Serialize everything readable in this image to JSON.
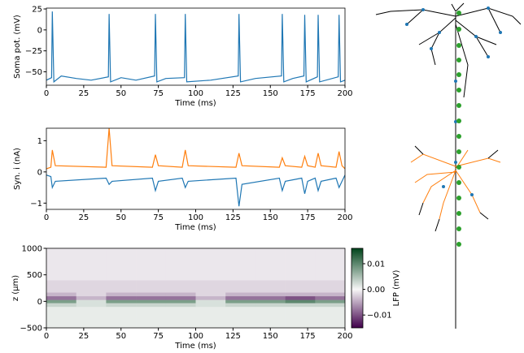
{
  "chart_data": [
    {
      "type": "line",
      "xlabel": "Time (ms)",
      "ylabel": "Soma pot. (mV)",
      "x": [
        0,
        3.5,
        4,
        5,
        10,
        20,
        30,
        41.5,
        42,
        43,
        50,
        60,
        72.5,
        73,
        74,
        80,
        92.5,
        93,
        94,
        110,
        128.5,
        129,
        130,
        140,
        157.5,
        158,
        159,
        165,
        172.5,
        173,
        174,
        181.5,
        182,
        183,
        195.5,
        196,
        197,
        200
      ],
      "series": [
        {
          "color": "#1f77b4",
          "values": [
            -60,
            -57,
            22,
            -62,
            -55,
            -58,
            -60,
            -56,
            19,
            -62,
            -57,
            -60,
            -55,
            19,
            -62,
            -58,
            -57,
            19,
            -62,
            -60,
            -55,
            19,
            -62,
            -58,
            -55,
            19,
            -62,
            -58,
            -55,
            18,
            -62,
            -56,
            18,
            -62,
            -56,
            18,
            -62,
            -60
          ]
        }
      ],
      "xlim": [
        0,
        200
      ],
      "xticks": [
        0,
        25,
        50,
        75,
        100,
        125,
        150,
        175,
        200
      ],
      "ylim": [
        -66,
        26
      ],
      "yticks": [
        25,
        0,
        {
          "value": -25,
          "label": "−25"
        },
        {
          "value": -50,
          "label": "−50"
        }
      ]
    },
    {
      "type": "line",
      "xlabel": "Time (ms)",
      "ylabel": "Syn. i (nA)",
      "x": [
        0,
        3,
        4,
        6,
        40,
        42,
        44,
        71,
        73,
        75,
        91,
        93,
        95,
        127,
        129,
        131,
        156,
        158,
        160,
        171,
        173,
        175,
        180,
        182,
        184,
        194,
        196,
        198,
        200
      ],
      "series": [
        {
          "color": "#ff7f0e",
          "values": [
            0.1,
            0.15,
            0.7,
            0.2,
            0.15,
            1.4,
            0.2,
            0.15,
            0.55,
            0.2,
            0.15,
            0.7,
            0.2,
            0.15,
            0.6,
            0.2,
            0.15,
            0.45,
            0.2,
            0.15,
            0.5,
            0.2,
            0.15,
            0.6,
            0.2,
            0.15,
            0.65,
            0.2,
            0.1
          ]
        },
        {
          "color": "#1f77b4",
          "values": [
            -0.1,
            -0.15,
            -0.5,
            -0.3,
            -0.2,
            -0.4,
            -0.3,
            -0.2,
            -0.6,
            -0.3,
            -0.2,
            -0.5,
            -0.3,
            -0.2,
            -1.1,
            -0.4,
            -0.2,
            -0.6,
            -0.3,
            -0.2,
            -0.7,
            -0.3,
            -0.2,
            -0.6,
            -0.3,
            -0.2,
            -0.5,
            -0.3,
            -0.1
          ]
        }
      ],
      "xlim": [
        0,
        200
      ],
      "xticks": [
        0,
        25,
        50,
        75,
        100,
        125,
        150,
        175,
        200
      ],
      "ylim": [
        -1.2,
        1.4
      ],
      "yticks": [
        1,
        0,
        {
          "value": -1,
          "label": "−1"
        }
      ]
    },
    {
      "type": "heatmap",
      "xlabel": "Time (ms)",
      "ylabel": "z (μm)",
      "colorbar_label": "LFP (mV)",
      "x_edges": [
        0,
        20,
        40,
        60,
        80,
        100,
        120,
        140,
        160,
        180,
        200
      ],
      "z_edges": [
        -500,
        -100,
        -30,
        30,
        100,
        170,
        400,
        1000
      ],
      "values": [
        [
          0.001,
          0.001,
          0.001,
          0.001,
          0.001,
          0.001,
          0.001,
          0.001,
          0.001,
          0.001
        ],
        [
          0.003,
          0.002,
          0.003,
          0.003,
          0.003,
          0.002,
          0.003,
          0.003,
          0.003,
          0.003
        ],
        [
          0.008,
          0.002,
          0.008,
          0.008,
          0.008,
          0.002,
          0.008,
          0.008,
          0.01,
          0.008
        ],
        [
          -0.008,
          -0.004,
          -0.008,
          -0.008,
          -0.008,
          -0.004,
          -0.008,
          -0.008,
          -0.01,
          -0.008
        ],
        [
          -0.004,
          -0.002,
          -0.004,
          -0.004,
          -0.004,
          -0.002,
          -0.004,
          -0.004,
          -0.004,
          -0.004
        ],
        [
          -0.002,
          -0.002,
          -0.002,
          -0.002,
          -0.002,
          -0.002,
          -0.002,
          -0.002,
          -0.002,
          -0.002
        ],
        [
          -0.001,
          -0.001,
          -0.001,
          -0.001,
          -0.001,
          -0.001,
          -0.001,
          -0.001,
          -0.001,
          -0.001
        ]
      ],
      "cmap": [
        "#40004b",
        "#f7f7f7",
        "#00441b"
      ],
      "clim": [
        -0.015,
        0.016
      ],
      "cticks": [
        0.01,
        {
          "value": 0,
          "label": "0.00"
        },
        {
          "value": -0.01,
          "label": "−0.01"
        }
      ],
      "xlim": [
        0,
        200
      ],
      "xticks": [
        0,
        25,
        50,
        75,
        100,
        125,
        150,
        175,
        200
      ],
      "ylim": [
        -500,
        1000
      ],
      "yticks": [
        1000,
        500,
        0,
        {
          "value": -500,
          "label": "−500"
        }
      ]
    }
  ]
}
